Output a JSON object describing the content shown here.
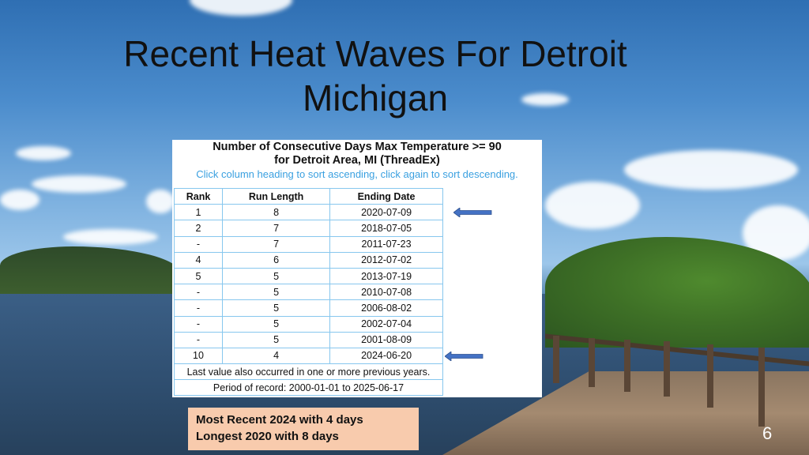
{
  "slide": {
    "title_line1": "Recent Heat Waves For Detroit",
    "title_line2": "Michigan",
    "page_number": "6"
  },
  "table_panel": {
    "heading_line1": "Number of Consecutive Days Max Temperature >= 90",
    "heading_line2": "for Detroit Area, MI (ThreadEx)",
    "instruction": "Click column heading to sort ascending, click again to sort descending.",
    "columns": [
      "Rank",
      "Run Length",
      "Ending Date"
    ],
    "rows": [
      [
        "1",
        "8",
        "2020-07-09"
      ],
      [
        "2",
        "7",
        "2018-07-05"
      ],
      [
        "-",
        "7",
        "2011-07-23"
      ],
      [
        "4",
        "6",
        "2012-07-02"
      ],
      [
        "5",
        "5",
        "2013-07-19"
      ],
      [
        "-",
        "5",
        "2010-07-08"
      ],
      [
        "-",
        "5",
        "2006-08-02"
      ],
      [
        "-",
        "5",
        "2002-07-04"
      ],
      [
        "-",
        "5",
        "2001-08-09"
      ],
      [
        "10",
        "4",
        "2024-06-20"
      ]
    ],
    "footnote": "Last value also occurred in one or more previous years.",
    "period": "Period of record: 2000-01-01 to 2025-06-17"
  },
  "callout": {
    "line1": "Most Recent 2024 with 4 days",
    "line2": "Longest 2020 with 8 days"
  },
  "colors": {
    "arrow_fill": "#4472c4",
    "table_border": "#87c7ee",
    "instruction_text": "#3aa0e0",
    "callout_bg": "#f8cbad"
  },
  "icons": [
    "left-arrow-icon",
    "left-arrow-icon"
  ]
}
